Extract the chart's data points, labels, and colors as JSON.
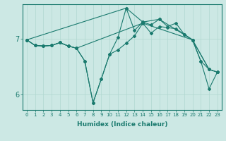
{
  "xlabel": "Humidex (Indice chaleur)",
  "background_color": "#cce8e4",
  "grid_color": "#b0d8d0",
  "line_color": "#1a7a6e",
  "xlim": [
    -0.5,
    23.5
  ],
  "ylim": [
    5.72,
    7.62
  ],
  "yticks": [
    6,
    7
  ],
  "xticks": [
    0,
    1,
    2,
    3,
    4,
    5,
    6,
    7,
    8,
    9,
    10,
    11,
    12,
    13,
    14,
    15,
    16,
    17,
    18,
    19,
    20,
    21,
    22,
    23
  ],
  "lines": [
    {
      "x": [
        0,
        1,
        2,
        3,
        4,
        5,
        6,
        7,
        8,
        9,
        10,
        11,
        12,
        13,
        14,
        15,
        16,
        17,
        18,
        19,
        20,
        21,
        22,
        23
      ],
      "y": [
        6.98,
        6.88,
        6.87,
        6.88,
        6.93,
        6.87,
        6.83,
        6.6,
        5.85,
        6.28,
        6.72,
        7.02,
        7.55,
        7.15,
        7.3,
        7.25,
        7.35,
        7.22,
        7.28,
        7.08,
        6.98,
        6.6,
        6.1,
        6.4
      ]
    },
    {
      "x": [
        0,
        1,
        2,
        3,
        4,
        5,
        6,
        7,
        8,
        9,
        10,
        11,
        12,
        13,
        14,
        15,
        16,
        17,
        18,
        19,
        20,
        21,
        22,
        23
      ],
      "y": [
        6.98,
        6.88,
        6.87,
        6.88,
        6.93,
        6.87,
        6.83,
        6.6,
        5.85,
        6.28,
        6.72,
        6.8,
        6.92,
        7.05,
        7.28,
        7.1,
        7.22,
        7.2,
        7.18,
        7.08,
        6.98,
        6.6,
        6.45,
        6.4
      ]
    },
    {
      "x": [
        0,
        12,
        14,
        16,
        20,
        22,
        23
      ],
      "y": [
        6.98,
        7.55,
        7.3,
        7.35,
        6.98,
        6.45,
        6.4
      ]
    },
    {
      "x": [
        0,
        1,
        2,
        3,
        4,
        5,
        6,
        14,
        20,
        22,
        23
      ],
      "y": [
        6.98,
        6.88,
        6.87,
        6.88,
        6.93,
        6.87,
        6.83,
        7.28,
        6.98,
        6.45,
        6.4
      ]
    }
  ]
}
